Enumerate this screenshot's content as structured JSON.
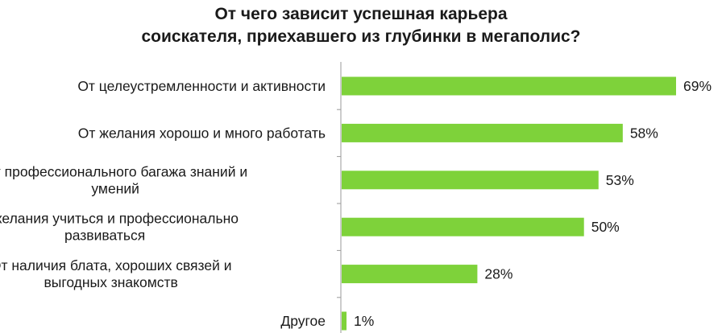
{
  "chart_data": {
    "type": "bar",
    "orientation": "horizontal",
    "title_lines": [
      "От чего зависит успешная карьера",
      "соискателя, приехавшего из глубинки в мегаполис?"
    ],
    "categories": [
      [
        "От целеустремленности и активности"
      ],
      [
        "От желания хорошо и много работать"
      ],
      [
        "От профессионального багажа знаний и",
        "умений"
      ],
      [
        "От желания учиться и профессионально",
        "развиваться"
      ],
      [
        "От наличия блата, хороших связей и",
        "выгодных знакомств"
      ],
      [
        "Другое"
      ]
    ],
    "values": [
      69,
      58,
      53,
      50,
      28,
      1
    ],
    "data_labels": [
      "69%",
      "58%",
      "53%",
      "50%",
      "28%",
      "1%"
    ],
    "xlim": [
      0,
      69
    ],
    "bar_color": "#7ed23a",
    "axis_color": "#9a9a9a",
    "grid": false,
    "legend": "none"
  }
}
